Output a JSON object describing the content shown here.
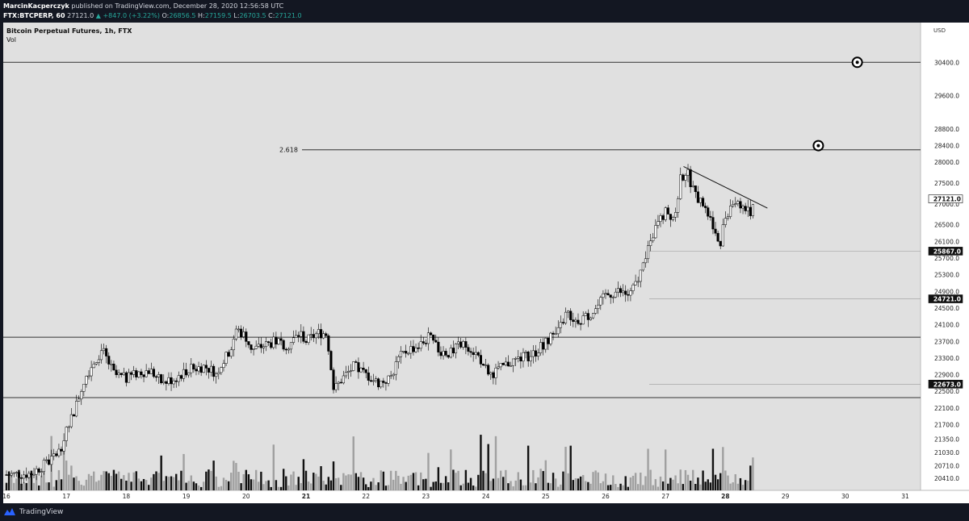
{
  "header": {
    "author": "MarcinKacperczyk",
    "published": "published on TradingView.com, December 28, 2020 12:56:58 UTC",
    "symbol": "FTX:BTCPERP, 60",
    "last": "27121.0",
    "change": "+847.0 (+3.22%)",
    "o_label": "O:",
    "o": "26856.5",
    "h_label": "H:",
    "h": "27159.5",
    "l_label": "L:",
    "l": "26703.5",
    "c_label": "C:",
    "c": "27121.0"
  },
  "legend": {
    "title": "Bitcoin Perpetual Futures, 1h, FTX",
    "vol": "Vol"
  },
  "footer": {
    "brand": "TradingView"
  },
  "colors": {
    "bg": "#e0e0e0",
    "candle_up": "#ffffff",
    "candle_down": "#000000",
    "vol_up": "#a0a0a0",
    "vol_down": "#111111",
    "axis_bg": "#ffffff"
  },
  "chart_data": {
    "type": "candlestick",
    "currency": "USD",
    "ylim": [
      20200,
      31200
    ],
    "y_ticks": [
      20410,
      20710,
      21030,
      21350,
      21700,
      22100,
      22500,
      22900,
      23300,
      23700,
      24100,
      24500,
      24900,
      25300,
      25700,
      26100,
      26500,
      27000,
      27500,
      28000,
      28400,
      28800,
      29600,
      30400
    ],
    "x_ticks": [
      "16",
      "17",
      "18",
      "19",
      "20",
      "21",
      "22",
      "23",
      "24",
      "25",
      "26",
      "27",
      "28",
      "29",
      "30",
      "31"
    ],
    "x_ticks_bold": [
      "21",
      "28"
    ],
    "horizontal_lines": [
      {
        "price": 30400,
        "label": ""
      },
      {
        "price": 28300,
        "label": "2.618"
      },
      {
        "price": 23800,
        "label": ""
      },
      {
        "price": 22350,
        "label": ""
      }
    ],
    "price_marks": [
      {
        "price": 27121.0,
        "label": "27121.0",
        "style": "current"
      },
      {
        "price": 25867.0,
        "label": "25867.0",
        "style": "dark"
      },
      {
        "price": 24721.0,
        "label": "24721.0",
        "style": "dark"
      },
      {
        "price": 22673.0,
        "label": "22673.0",
        "style": "dark"
      }
    ],
    "markers": [
      {
        "day": 30.2,
        "price": 30400
      },
      {
        "day": 29.55,
        "price": 28400
      }
    ],
    "trendline": [
      {
        "day": 27.3,
        "price": 27900
      },
      {
        "day": 28.7,
        "price": 26900
      }
    ],
    "candles_daily_path": [
      [
        16.0,
        20500
      ],
      [
        16.4,
        20520
      ],
      [
        16.7,
        20800
      ],
      [
        16.9,
        21100
      ],
      [
        17.0,
        21650
      ],
      [
        17.15,
        22100
      ],
      [
        17.3,
        22800
      ],
      [
        17.45,
        23200
      ],
      [
        17.6,
        23500
      ],
      [
        17.8,
        22900
      ],
      [
        18.0,
        22800
      ],
      [
        18.2,
        22950
      ],
      [
        18.4,
        23000
      ],
      [
        18.6,
        22700
      ],
      [
        18.8,
        22800
      ],
      [
        19.0,
        23000
      ],
      [
        19.3,
        23100
      ],
      [
        19.5,
        22950
      ],
      [
        19.7,
        23400
      ],
      [
        19.85,
        24000
      ],
      [
        20.0,
        23800
      ],
      [
        20.1,
        23500
      ],
      [
        20.3,
        23600
      ],
      [
        20.5,
        23700
      ],
      [
        20.7,
        23600
      ],
      [
        20.9,
        23900
      ],
      [
        21.0,
        23700
      ],
      [
        21.2,
        23900
      ],
      [
        21.35,
        23900
      ],
      [
        21.45,
        22500
      ],
      [
        21.6,
        22800
      ],
      [
        21.8,
        23100
      ],
      [
        22.0,
        22900
      ],
      [
        22.2,
        22700
      ],
      [
        22.4,
        22800
      ],
      [
        22.55,
        23300
      ],
      [
        22.7,
        23500
      ],
      [
        22.9,
        23600
      ],
      [
        23.05,
        23800
      ],
      [
        23.2,
        23500
      ],
      [
        23.4,
        23400
      ],
      [
        23.55,
        23600
      ],
      [
        23.7,
        23600
      ],
      [
        23.9,
        23300
      ],
      [
        24.05,
        22900
      ],
      [
        24.2,
        23000
      ],
      [
        24.4,
        23200
      ],
      [
        24.6,
        23300
      ],
      [
        24.8,
        23400
      ],
      [
        25.0,
        23700
      ],
      [
        25.2,
        23900
      ],
      [
        25.35,
        24400
      ],
      [
        25.5,
        24200
      ],
      [
        25.7,
        24300
      ],
      [
        25.85,
        24500
      ],
      [
        26.0,
        24800
      ],
      [
        26.2,
        24900
      ],
      [
        26.4,
        24800
      ],
      [
        26.55,
        25200
      ],
      [
        26.7,
        25900
      ],
      [
        26.85,
        26500
      ],
      [
        27.0,
        26800
      ],
      [
        27.15,
        26700
      ],
      [
        27.25,
        27600
      ],
      [
        27.35,
        27800
      ],
      [
        27.5,
        27200
      ],
      [
        27.65,
        26900
      ],
      [
        27.8,
        26500
      ],
      [
        27.9,
        26000
      ],
      [
        28.0,
        26700
      ],
      [
        28.1,
        27000
      ],
      [
        28.2,
        27100
      ],
      [
        28.3,
        26900
      ],
      [
        28.42,
        26800
      ],
      [
        28.5,
        27121
      ]
    ],
    "volume_ymax": 100
  }
}
